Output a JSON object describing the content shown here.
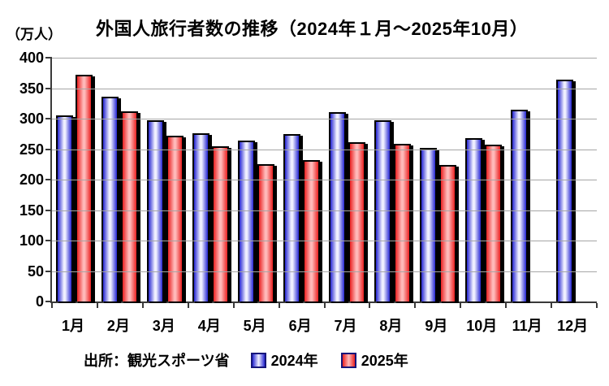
{
  "page": {
    "background": "#ffffff"
  },
  "chart_data": {
    "type": "bar",
    "title": "外国人旅行者数の推移（2024年１月～2025年10月）",
    "unit_label": "（万人）",
    "source": "出所：観光スポーツ省",
    "categories": [
      "1月",
      "2月",
      "3月",
      "4月",
      "5月",
      "6月",
      "7月",
      "8月",
      "9月",
      "10月",
      "11月",
      "12月"
    ],
    "series": [
      {
        "name": "2024年",
        "edge_color": "#2626d2",
        "center_color": "#f0f0ff",
        "values": [
          305,
          336,
          298,
          276,
          264,
          275,
          311,
          297,
          252,
          268,
          315,
          364
        ]
      },
      {
        "name": "2025年",
        "edge_color": "#ea2121",
        "center_color": "#ffbaba",
        "values": [
          372,
          312,
          272,
          255,
          226,
          232,
          261,
          259,
          224,
          257,
          null,
          null
        ]
      }
    ],
    "ylim": [
      0,
      400
    ],
    "yticks": [
      0,
      50,
      100,
      150,
      200,
      250,
      300,
      350,
      400
    ],
    "grid": true,
    "legend_position": "bottom",
    "bar_border_color": "#000000",
    "gridline_color": "#a6a6a6",
    "axis_color": "#3a3a3a"
  }
}
